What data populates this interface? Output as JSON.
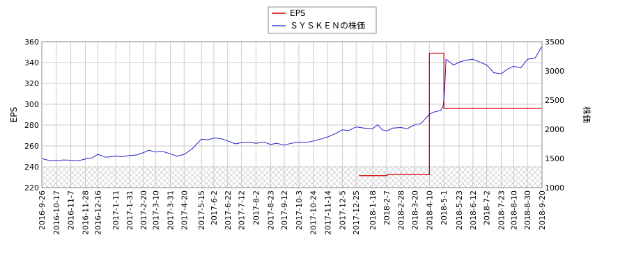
{
  "chart_data": {
    "type": "line",
    "x_tick_labels": [
      "2016-9-26",
      "2016-10-17",
      "2016-11-7",
      "2016-11-28",
      "2016-12-16",
      "2017-1-11",
      "2017-1-31",
      "2017-2-20",
      "2017-3-10",
      "2017-3-31",
      "2017-4-20",
      "2017-5-15",
      "2017-6-2",
      "2017-6-22",
      "2017-7-12",
      "2017-8-2",
      "2017-8-23",
      "2017-9-12",
      "2017-10-3",
      "2017-10-24",
      "2017-11-14",
      "2017-12-5",
      "2017-12-25",
      "2018-1-18",
      "2018-2-7",
      "2018-2-28",
      "2018-3-20",
      "2018-4-10",
      "2018-5-1",
      "2018-5-23",
      "2018-6-12",
      "2018-7-2",
      "2018-7-23",
      "2018-8-10",
      "2018-8-30",
      "2018-9-20"
    ],
    "left_axis": {
      "label": "EPS",
      "ylim": [
        220,
        360
      ],
      "ticks": [
        220,
        240,
        260,
        280,
        300,
        320,
        340,
        360
      ]
    },
    "right_axis": {
      "label": "株価",
      "ylim": [
        1000,
        3500
      ],
      "ticks": [
        1000,
        1500,
        2000,
        2500,
        3000,
        3500
      ]
    },
    "grid": true,
    "legend_position": "top-center",
    "hatched_band_below": 240,
    "series": [
      {
        "name": "EPS",
        "axis": "left",
        "color": "#dd0000",
        "points": [
          [
            "2017-12-29",
            231.5
          ],
          [
            "2018-1-18",
            231.5
          ],
          [
            "2018-2-7",
            231.5
          ],
          [
            "2018-2-8",
            232.5
          ],
          [
            "2018-2-28",
            232.5
          ],
          [
            "2018-3-20",
            232.5
          ],
          [
            "2018-4-9",
            232.5
          ],
          [
            "2018-4-10",
            349.0
          ],
          [
            "2018-4-30",
            349.0
          ],
          [
            "2018-5-1",
            296.0
          ],
          [
            "2018-5-23",
            296.0
          ],
          [
            "2018-6-12",
            296.0
          ],
          [
            "2018-7-2",
            296.0
          ],
          [
            "2018-7-23",
            296.0
          ],
          [
            "2018-8-10",
            296.0
          ],
          [
            "2018-8-30",
            296.0
          ],
          [
            "2018-9-20",
            296.0
          ]
        ]
      },
      {
        "name": "ＳＹＳＫＥＮの株価",
        "axis": "right",
        "color": "#2222cc",
        "points": [
          [
            "2016-9-26",
            1500
          ],
          [
            "2016-10-5",
            1470
          ],
          [
            "2016-10-17",
            1460
          ],
          [
            "2016-10-27",
            1475
          ],
          [
            "2016-11-7",
            1470
          ],
          [
            "2016-11-18",
            1460
          ],
          [
            "2016-11-28",
            1490
          ],
          [
            "2016-12-8",
            1510
          ],
          [
            "2016-12-16",
            1570
          ],
          [
            "2016-12-28",
            1520
          ],
          [
            "2017-1-11",
            1540
          ],
          [
            "2017-1-20",
            1530
          ],
          [
            "2017-1-31",
            1550
          ],
          [
            "2017-2-10",
            1560
          ],
          [
            "2017-2-20",
            1600
          ],
          [
            "2017-2-28",
            1640
          ],
          [
            "2017-3-10",
            1610
          ],
          [
            "2017-3-20",
            1620
          ],
          [
            "2017-3-31",
            1580
          ],
          [
            "2017-4-10",
            1540
          ],
          [
            "2017-4-20",
            1570
          ],
          [
            "2017-5-1",
            1660
          ],
          [
            "2017-5-15",
            1830
          ],
          [
            "2017-5-25",
            1820
          ],
          [
            "2017-6-2",
            1850
          ],
          [
            "2017-6-12",
            1840
          ],
          [
            "2017-6-22",
            1800
          ],
          [
            "2017-7-3",
            1750
          ],
          [
            "2017-7-12",
            1770
          ],
          [
            "2017-7-24",
            1780
          ],
          [
            "2017-8-2",
            1760
          ],
          [
            "2017-8-14",
            1780
          ],
          [
            "2017-8-23",
            1740
          ],
          [
            "2017-9-1",
            1760
          ],
          [
            "2017-9-12",
            1730
          ],
          [
            "2017-9-22",
            1760
          ],
          [
            "2017-10-3",
            1780
          ],
          [
            "2017-10-13",
            1770
          ],
          [
            "2017-10-24",
            1800
          ],
          [
            "2017-11-3",
            1830
          ],
          [
            "2017-11-14",
            1870
          ],
          [
            "2017-11-24",
            1920
          ],
          [
            "2017-12-5",
            1990
          ],
          [
            "2017-12-14",
            1980
          ],
          [
            "2017-12-25",
            2040
          ],
          [
            "2018-1-5",
            2020
          ],
          [
            "2018-1-18",
            2010
          ],
          [
            "2018-1-25",
            2080
          ],
          [
            "2018-2-1",
            1990
          ],
          [
            "2018-2-7",
            1970
          ],
          [
            "2018-2-16",
            2020
          ],
          [
            "2018-2-28",
            2030
          ],
          [
            "2018-3-9",
            2010
          ],
          [
            "2018-3-20",
            2080
          ],
          [
            "2018-3-29",
            2100
          ],
          [
            "2018-4-10",
            2260
          ],
          [
            "2018-4-18",
            2300
          ],
          [
            "2018-4-26",
            2320
          ],
          [
            "2018-4-30",
            2400
          ],
          [
            "2018-5-2",
            2650
          ],
          [
            "2018-5-4",
            3200
          ],
          [
            "2018-5-15",
            3100
          ],
          [
            "2018-5-23",
            3150
          ],
          [
            "2018-6-1",
            3180
          ],
          [
            "2018-6-12",
            3200
          ],
          [
            "2018-6-22",
            3150
          ],
          [
            "2018-7-2",
            3100
          ],
          [
            "2018-7-12",
            2970
          ],
          [
            "2018-7-23",
            2950
          ],
          [
            "2018-8-1",
            3030
          ],
          [
            "2018-8-10",
            3080
          ],
          [
            "2018-8-20",
            3050
          ],
          [
            "2018-8-30",
            3200
          ],
          [
            "2018-9-10",
            3220
          ],
          [
            "2018-9-20",
            3420
          ]
        ]
      }
    ]
  }
}
